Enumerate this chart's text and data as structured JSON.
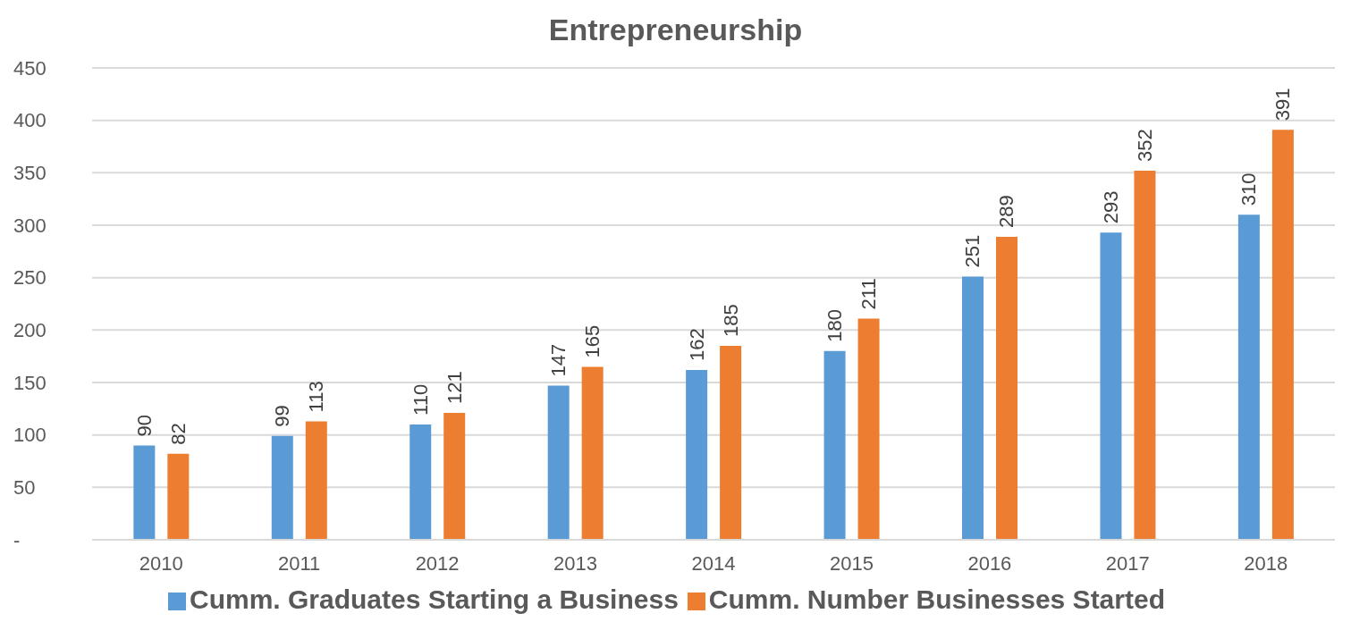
{
  "chart_data": {
    "type": "bar",
    "title": "Entrepreneurship",
    "categories": [
      "2010",
      "2011",
      "2012",
      "2013",
      "2014",
      "2015",
      "2016",
      "2017",
      "2018"
    ],
    "series": [
      {
        "name": "Cumm. Graduates Starting a Business",
        "color": "#5b9bd5",
        "values": [
          90,
          99,
          110,
          147,
          162,
          180,
          251,
          293,
          310
        ]
      },
      {
        "name": "Cumm. Number Businesses Started",
        "color": "#ed7d31",
        "values": [
          82,
          113,
          121,
          165,
          185,
          211,
          289,
          352,
          391
        ]
      }
    ],
    "ylim": [
      0,
      450
    ],
    "yticks": [
      {
        "value": 0,
        "label": "-"
      },
      50,
      100,
      150,
      200,
      250,
      300,
      350,
      400,
      450
    ],
    "grid": "y",
    "legend": "bottom",
    "data_labels": true
  }
}
